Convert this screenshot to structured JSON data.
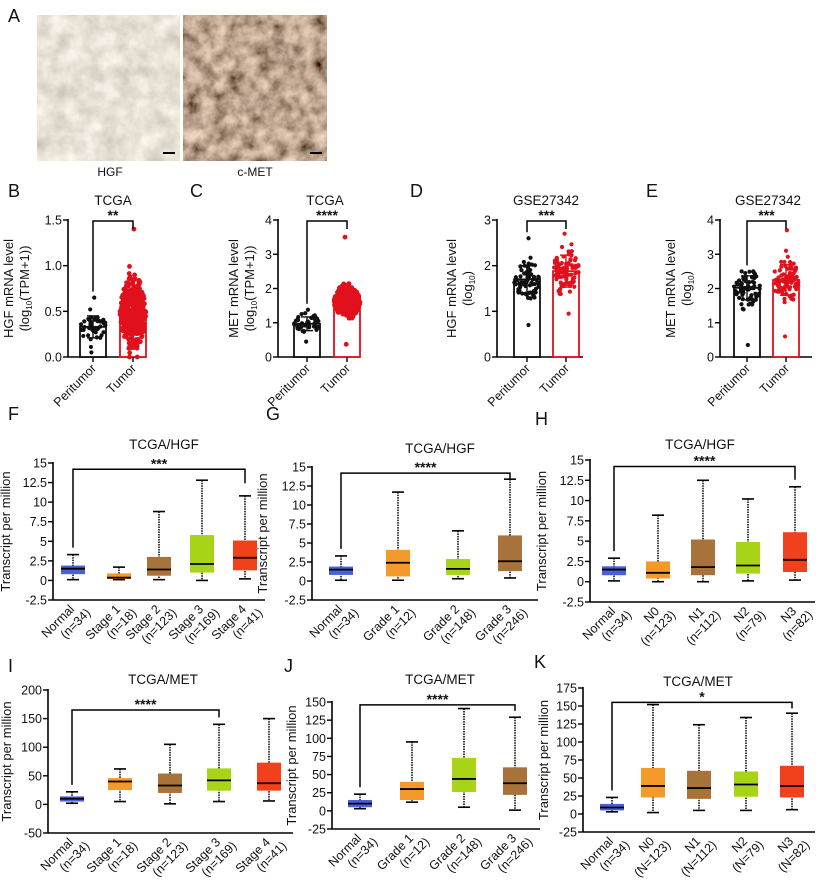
{
  "panel_a": {
    "letter": "A",
    "images": [
      {
        "label": "HGF",
        "stain": "light diffuse brown cytoplasmic staining"
      },
      {
        "label": "c-MET",
        "stain": "strong dark brown membranous/cytoplasmic staining"
      }
    ]
  },
  "colors": {
    "peritumor": "#111111",
    "tumor": "#e0101c",
    "normal": "#4a5fd8",
    "orange": "#f39a2b",
    "brown": "#a8733a",
    "green": "#a8d418",
    "red": "#f0401c"
  },
  "chart_data": [
    {
      "id": "B",
      "letter": "B",
      "type": "bar",
      "title": "TCGA",
      "ylabel": {
        "line1": "HGF mRNA level",
        "pre": "(log",
        "sub": "10",
        "post": "(TPM+1))"
      },
      "ylim": [
        0,
        1.5
      ],
      "yticks": [
        0,
        0.5,
        1.0,
        1.5
      ],
      "ytick_labels": [
        "0.0",
        "0.5",
        "1.0",
        "1.5"
      ],
      "categories": [
        "Peritumor",
        "Tumor"
      ],
      "series": [
        {
          "category": "Peritumor",
          "mean": 0.33,
          "sd": 0.12,
          "min": 0.05,
          "max": 0.65,
          "color": "#111111"
        },
        {
          "category": "Tumor",
          "mean": 0.49,
          "sd": 0.25,
          "min": 0.0,
          "max": 1.4,
          "color": "#e0101c"
        }
      ],
      "significance": {
        "label": "**",
        "from": "Peritumor",
        "to": "Tumor",
        "level": 1.5
      }
    },
    {
      "id": "C",
      "letter": "C",
      "type": "bar",
      "title": "TCGA",
      "ylabel": {
        "line1": "MET mRNA level",
        "pre": "(log",
        "sub": "10",
        "post": "(TPM+1))"
      },
      "ylim": [
        0,
        4
      ],
      "yticks": [
        0,
        1,
        2,
        3,
        4
      ],
      "ytick_labels": [
        "0",
        "1",
        "2",
        "3",
        "4"
      ],
      "categories": [
        "Peritumor",
        "Tumor"
      ],
      "series": [
        {
          "category": "Peritumor",
          "mean": 0.97,
          "sd": 0.2,
          "min": 0.45,
          "max": 1.38,
          "color": "#111111"
        },
        {
          "category": "Tumor",
          "mean": 1.62,
          "sd": 0.3,
          "min": 0.37,
          "max": 3.5,
          "color": "#e0101c"
        }
      ],
      "significance": {
        "label": "****",
        "from": "Peritumor",
        "to": "Tumor",
        "level": 4
      }
    },
    {
      "id": "D",
      "letter": "D",
      "type": "bar",
      "title": "GSE27342",
      "ylabel": {
        "line1": "HGF mRNA level",
        "pre": "(log",
        "sub": "10",
        "post": ")"
      },
      "ylim": [
        0,
        3
      ],
      "yticks": [
        0,
        1,
        2,
        3
      ],
      "ytick_labels": [
        "0",
        "1",
        "2",
        "3"
      ],
      "categories": [
        "Peritumor",
        "Tumor"
      ],
      "series": [
        {
          "category": "Peritumor",
          "mean": 1.7,
          "sd": 0.3,
          "min": 0.7,
          "max": 2.6,
          "color": "#111111"
        },
        {
          "category": "Tumor",
          "mean": 1.88,
          "sd": 0.35,
          "min": 0.95,
          "max": 2.7,
          "color": "#e0101c"
        }
      ],
      "significance": {
        "label": "***",
        "from": "Peritumor",
        "to": "Tumor",
        "level": 3
      }
    },
    {
      "id": "E",
      "letter": "E",
      "type": "bar",
      "title": "GSE27342",
      "ylabel": {
        "line1": "MET mRNA level",
        "pre": "(log",
        "sub": "10",
        "post": ")"
      },
      "ylim": [
        0,
        4
      ],
      "yticks": [
        0,
        1,
        2,
        3,
        4
      ],
      "ytick_labels": [
        "0",
        "1",
        "2",
        "3",
        "4"
      ],
      "categories": [
        "Peritumor",
        "Tumor"
      ],
      "series": [
        {
          "category": "Peritumor",
          "mean": 2.02,
          "sd": 0.35,
          "min": 0.35,
          "max": 2.5,
          "color": "#111111"
        },
        {
          "category": "Tumor",
          "mean": 2.25,
          "sd": 0.45,
          "min": 0.6,
          "max": 3.7,
          "color": "#e0101c"
        }
      ],
      "significance": {
        "label": "***",
        "from": "Peritumor",
        "to": "Tumor",
        "level": 4
      }
    },
    {
      "id": "F",
      "letter": "F",
      "type": "box",
      "title": "TCGA/HGF",
      "ylabel": "Transcript per million",
      "ylim": [
        -2.5,
        15
      ],
      "yticks": [
        -2.5,
        0,
        2.5,
        5,
        7.5,
        10,
        12.5,
        15
      ],
      "ytick_labels": [
        "-2.5",
        "0",
        "2.5",
        "5",
        "7.5",
        "10",
        "12.5",
        "15"
      ],
      "boxes": [
        {
          "name": "Normal",
          "n": "(n=34)",
          "stats": [
            0.1,
            0.8,
            1.5,
            1.9,
            3.3
          ],
          "color": "#4a5fd8"
        },
        {
          "name": "Stage 1",
          "n": "(n=18)",
          "stats": [
            0.1,
            0.2,
            0.35,
            0.9,
            1.7
          ],
          "color": "#f39a2b"
        },
        {
          "name": "Stage 2",
          "n": "(n=123)",
          "stats": [
            0.1,
            0.6,
            1.4,
            3.0,
            8.8
          ],
          "color": "#a8733a"
        },
        {
          "name": "Stage 3",
          "n": "(n=169)",
          "stats": [
            0.0,
            1.0,
            2.1,
            5.8,
            12.8
          ],
          "color": "#a8d418"
        },
        {
          "name": "Stage 4",
          "n": "(n=41)",
          "stats": [
            0.2,
            1.3,
            2.9,
            5.1,
            10.8
          ],
          "color": "#f0401c"
        }
      ],
      "significance": {
        "label": "***",
        "from": 0,
        "to": 4,
        "level": 14.2
      }
    },
    {
      "id": "G",
      "letter": "G",
      "type": "box",
      "title": "TCGA/HGF",
      "ylabel": "Transcript per million",
      "ylim": [
        -2.5,
        15
      ],
      "yticks": [
        -2.5,
        0,
        2.5,
        5,
        7.5,
        10,
        12.5,
        15
      ],
      "ytick_labels": [
        "-2.5",
        "0",
        "2.5",
        "5",
        "7.5",
        "10",
        "12.5",
        "15"
      ],
      "boxes": [
        {
          "name": "Normal",
          "n": "(n=34)",
          "stats": [
            0.1,
            0.8,
            1.5,
            1.9,
            3.3
          ],
          "color": "#4a5fd8"
        },
        {
          "name": "Grade 1",
          "n": "(n=12)",
          "stats": [
            0.1,
            0.6,
            2.4,
            4.1,
            11.7
          ],
          "color": "#f39a2b"
        },
        {
          "name": "Grade 2",
          "n": "(n=148)",
          "stats": [
            0.3,
            0.8,
            1.6,
            2.9,
            6.6
          ],
          "color": "#a8d418"
        },
        {
          "name": "Grade 3",
          "n": "(n=246)",
          "stats": [
            0.4,
            1.3,
            2.6,
            6.0,
            13.4
          ],
          "color": "#a8733a"
        }
      ],
      "significance": {
        "label": "****",
        "from": 0,
        "to": 3,
        "level": 14.2
      }
    },
    {
      "id": "H",
      "letter": "H",
      "type": "box",
      "title": "TCGA/HGF",
      "ylabel": "Transcript per million",
      "ylim": [
        -2.5,
        15
      ],
      "yticks": [
        -2.5,
        0,
        2.5,
        5,
        7.5,
        10,
        12.5,
        15
      ],
      "ytick_labels": [
        "-2.5",
        "0",
        "2.5",
        "5",
        "7.5",
        "10",
        "12.5",
        "15"
      ],
      "boxes": [
        {
          "name": "Normal",
          "n": "(n=34)",
          "stats": [
            0.1,
            0.8,
            1.5,
            1.9,
            2.9
          ],
          "color": "#4a5fd8"
        },
        {
          "name": "N0",
          "n": "(n=123)",
          "stats": [
            0.0,
            0.4,
            1.1,
            2.5,
            8.2
          ],
          "color": "#f39a2b"
        },
        {
          "name": "N1",
          "n": "(n=112)",
          "stats": [
            0.0,
            0.8,
            1.8,
            5.2,
            12.5
          ],
          "color": "#a8733a"
        },
        {
          "name": "N2",
          "n": "(n=79)",
          "stats": [
            0.1,
            1.0,
            2.0,
            4.9,
            10.2
          ],
          "color": "#a8d418"
        },
        {
          "name": "N3",
          "n": "(n=82)",
          "stats": [
            0.2,
            1.2,
            2.7,
            6.1,
            11.7
          ],
          "color": "#f0401c"
        }
      ],
      "significance": {
        "label": "****",
        "from": 0,
        "to": 4,
        "level": 14.2
      }
    },
    {
      "id": "I",
      "letter": "I",
      "type": "box",
      "title": "TCGA/MET",
      "ylabel": "Transcript per million",
      "ylim": [
        -50,
        200
      ],
      "yticks": [
        -50,
        0,
        50,
        100,
        150,
        200
      ],
      "ytick_labels": [
        "-50",
        "0",
        "50",
        "100",
        "150",
        "200"
      ],
      "boxes": [
        {
          "name": "Normal",
          "n": "(n=34)",
          "stats": [
            2,
            5,
            10,
            14,
            22
          ],
          "color": "#4a5fd8"
        },
        {
          "name": "Stage 1",
          "n": "(n=18)",
          "stats": [
            5,
            25,
            40,
            46,
            62
          ],
          "color": "#f39a2b"
        },
        {
          "name": "Stage 2",
          "n": "(n=123)",
          "stats": [
            1,
            20,
            33,
            54,
            105
          ],
          "color": "#a8733a"
        },
        {
          "name": "Stage 3",
          "n": "(n=169)",
          "stats": [
            5,
            24,
            42,
            63,
            140
          ],
          "color": "#a8d418"
        },
        {
          "name": "Stage 4",
          "n": "(n=41)",
          "stats": [
            6,
            24,
            37,
            73,
            150
          ],
          "color": "#f0401c"
        }
      ],
      "significance": {
        "label": "****",
        "from": 0,
        "to": 3,
        "level": 165
      }
    },
    {
      "id": "J",
      "letter": "J",
      "type": "box",
      "title": "TCGA/MET",
      "ylabel": "Transcript per million",
      "ylim": [
        -25,
        150
      ],
      "yticks": [
        -25,
        0,
        25,
        50,
        75,
        100,
        125,
        150
      ],
      "ytick_labels": [
        "-25",
        "0",
        "25",
        "50",
        "75",
        "100",
        "125",
        "150"
      ],
      "boxes": [
        {
          "name": "Normal",
          "n": "(n=34)",
          "stats": [
            3,
            5,
            10,
            15,
            23
          ],
          "color": "#4a5fd8"
        },
        {
          "name": "Grade 1",
          "n": "(n=12)",
          "stats": [
            12,
            15,
            30,
            40,
            95
          ],
          "color": "#f39a2b"
        },
        {
          "name": "Grade 2",
          "n": "(n=148)",
          "stats": [
            5,
            26,
            44,
            73,
            141
          ],
          "color": "#a8d418"
        },
        {
          "name": "Grade 3",
          "n": "(n=246)",
          "stats": [
            1,
            22,
            38,
            60,
            129
          ],
          "color": "#a8733a"
        }
      ],
      "significance": {
        "label": "****",
        "from": 0,
        "to": 3,
        "level": 146
      }
    },
    {
      "id": "K",
      "letter": "K",
      "type": "box",
      "title": "TCGA/MET",
      "ylabel": "Transcript per million",
      "ylim": [
        -25,
        175
      ],
      "yticks": [
        -25,
        0,
        25,
        50,
        75,
        100,
        125,
        150,
        175
      ],
      "ytick_labels": [
        "-25",
        "0",
        "25",
        "50",
        "75",
        "100",
        "125",
        "150",
        "175"
      ],
      "boxes": [
        {
          "name": "Normal",
          "n": "(n=34)",
          "stats": [
            3,
            5,
            9,
            14,
            23
          ],
          "color": "#4a5fd8"
        },
        {
          "name": "N0",
          "n": "(N=123)",
          "stats": [
            2,
            23,
            39,
            64,
            152
          ],
          "color": "#f39a2b"
        },
        {
          "name": "N1",
          "n": "(N=112)",
          "stats": [
            5,
            21,
            36,
            60,
            124
          ],
          "color": "#a8733a"
        },
        {
          "name": "N2",
          "n": "(N=79)",
          "stats": [
            5,
            24,
            41,
            59,
            134
          ],
          "color": "#a8d418"
        },
        {
          "name": "N3",
          "n": "(N=82)",
          "stats": [
            6,
            23,
            39,
            67,
            140
          ],
          "color": "#f0401c"
        }
      ],
      "significance": {
        "label": "*",
        "from": 0,
        "to": 4,
        "level": 155
      }
    }
  ]
}
